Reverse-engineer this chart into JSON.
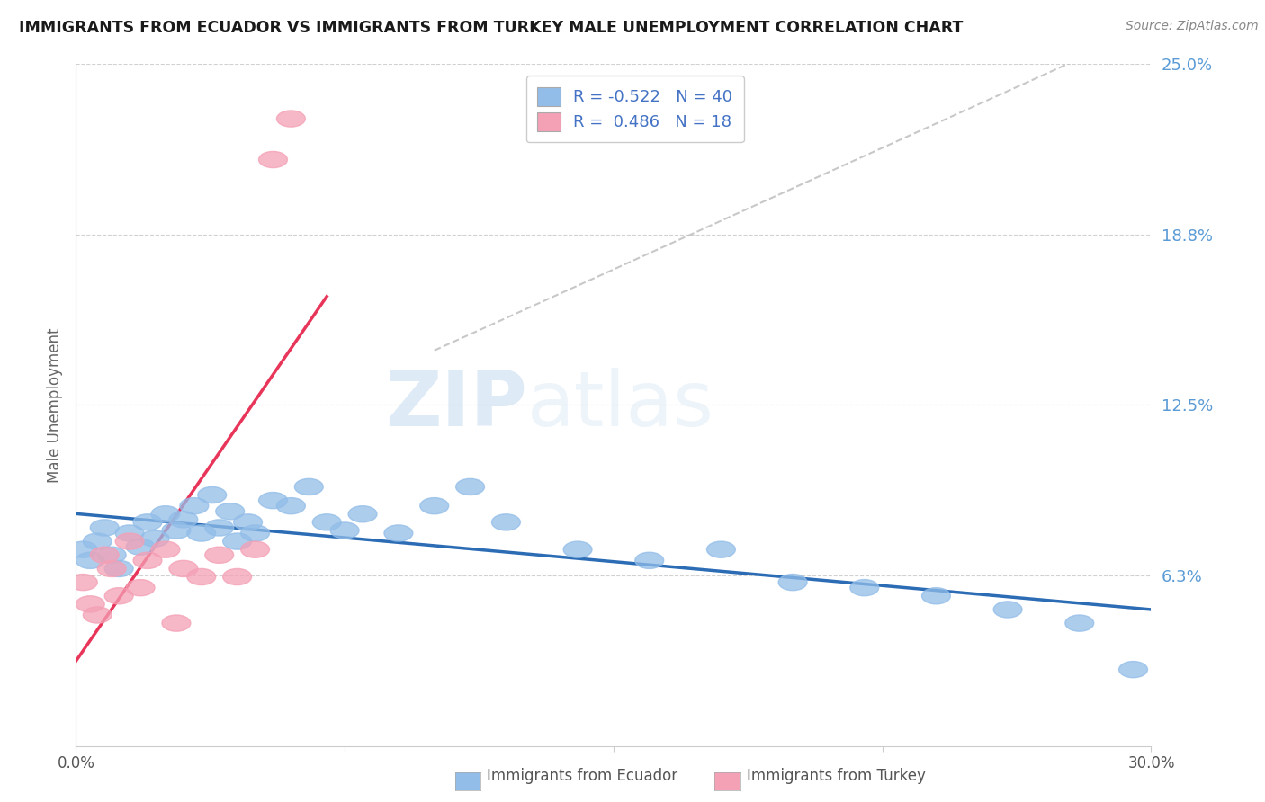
{
  "title": "IMMIGRANTS FROM ECUADOR VS IMMIGRANTS FROM TURKEY MALE UNEMPLOYMENT CORRELATION CHART",
  "source": "Source: ZipAtlas.com",
  "ylabel": "Male Unemployment",
  "legend_ecuador": "Immigrants from Ecuador",
  "legend_turkey": "Immigrants from Turkey",
  "R_ecuador": -0.522,
  "N_ecuador": 40,
  "R_turkey": 0.486,
  "N_turkey": 18,
  "xlim": [
    0.0,
    0.3
  ],
  "ylim": [
    0.0,
    0.25
  ],
  "yticks": [
    0.0625,
    0.125,
    0.1875,
    0.25
  ],
  "ytick_labels": [
    "6.3%",
    "12.5%",
    "18.8%",
    "25.0%"
  ],
  "color_ecuador": "#92BDE8",
  "color_turkey": "#F4A0B5",
  "line_color_ecuador": "#2B6CB5",
  "line_color_turkey": "#E8355A",
  "ecuador_x": [
    0.002,
    0.004,
    0.006,
    0.008,
    0.01,
    0.012,
    0.015,
    0.018,
    0.02,
    0.022,
    0.025,
    0.028,
    0.03,
    0.033,
    0.035,
    0.038,
    0.04,
    0.043,
    0.045,
    0.048,
    0.05,
    0.055,
    0.06,
    0.065,
    0.07,
    0.075,
    0.08,
    0.09,
    0.1,
    0.11,
    0.12,
    0.14,
    0.16,
    0.18,
    0.2,
    0.22,
    0.24,
    0.26,
    0.28,
    0.295
  ],
  "ecuador_y": [
    0.072,
    0.068,
    0.075,
    0.08,
    0.07,
    0.065,
    0.078,
    0.073,
    0.082,
    0.076,
    0.085,
    0.079,
    0.083,
    0.088,
    0.078,
    0.092,
    0.08,
    0.086,
    0.075,
    0.082,
    0.078,
    0.09,
    0.088,
    0.095,
    0.082,
    0.079,
    0.085,
    0.078,
    0.088,
    0.095,
    0.082,
    0.072,
    0.068,
    0.072,
    0.06,
    0.058,
    0.055,
    0.05,
    0.045,
    0.028
  ],
  "turkey_x": [
    0.002,
    0.004,
    0.006,
    0.008,
    0.01,
    0.012,
    0.015,
    0.018,
    0.02,
    0.025,
    0.028,
    0.03,
    0.035,
    0.04,
    0.045,
    0.05,
    0.055,
    0.06
  ],
  "turkey_y": [
    0.06,
    0.052,
    0.048,
    0.07,
    0.065,
    0.055,
    0.075,
    0.058,
    0.068,
    0.072,
    0.045,
    0.065,
    0.062,
    0.07,
    0.062,
    0.072,
    0.215,
    0.23
  ],
  "dashed_line_x": [
    0.115,
    0.28
  ],
  "dashed_line_y": [
    0.16,
    0.255
  ]
}
